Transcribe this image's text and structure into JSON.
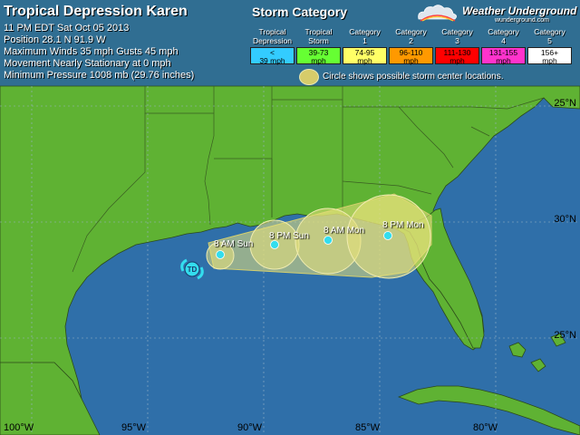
{
  "storm": {
    "title": "Tropical Depression Karen",
    "lines": [
      "11 PM EDT Sat Oct 05 2013",
      "Position 28.1 N 91.9 W",
      "Maximum Winds 35 mph  Gusts 45 mph",
      "Movement Nearly Stationary at 0 mph",
      "Minimum Pressure 1008 mb (29.76 inches)"
    ],
    "current_marker": "TD"
  },
  "legend": {
    "title": "Storm Category",
    "categories": [
      {
        "name": "Tropical Depression",
        "range": "< 39 mph",
        "color": "#33ccff"
      },
      {
        "name": "Tropical Storm",
        "range": "39-73 mph",
        "color": "#66ff33"
      },
      {
        "name": "Category 1",
        "range": "74-95 mph",
        "color": "#ffff66"
      },
      {
        "name": "Category 2",
        "range": "96-110 mph",
        "color": "#ff9900"
      },
      {
        "name": "Category 3",
        "range": "111-130 mph",
        "color": "#ff0000"
      },
      {
        "name": "Category 4",
        "range": "131-155 mph",
        "color": "#ff33cc"
      },
      {
        "name": "Category 5",
        "range": "156+ mph",
        "color": "#ffffff"
      }
    ],
    "circle_note": "Circle shows possible storm center locations."
  },
  "brand": {
    "name": "Weather Underground",
    "sub": "wunderground.com"
  },
  "grid": {
    "lat_labels": [
      "25°N",
      "30°N",
      "25°N"
    ],
    "lon_labels": [
      "100°W",
      "95°W",
      "90°W",
      "85°W",
      "80°W"
    ]
  },
  "forecast": [
    {
      "label": "8 AM Sun"
    },
    {
      "label": "8 PM Sun"
    },
    {
      "label": "8 AM Mon"
    },
    {
      "label": "8 PM Mon"
    }
  ],
  "colors": {
    "ocean": "#2e6ea8",
    "land": "#5fb233",
    "cone": "#e8e27a",
    "point": "#33ddee"
  }
}
